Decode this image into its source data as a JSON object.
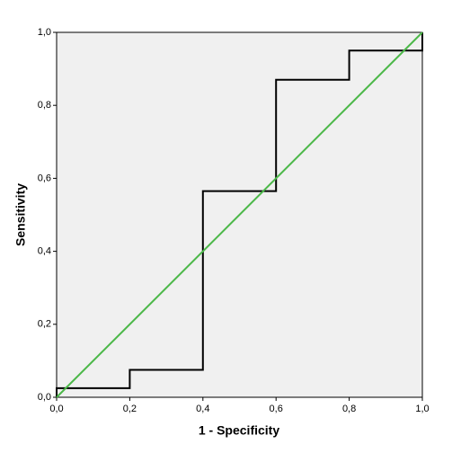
{
  "chart_data": {
    "type": "line",
    "x_label": "1 - Specificity",
    "y_label": "Sensitivity",
    "xlim": [
      0,
      1
    ],
    "ylim": [
      0,
      1
    ],
    "xticks": [
      {
        "value": 0,
        "label": "0,0"
      },
      {
        "value": 0.2,
        "label": "0,2"
      },
      {
        "value": 0.4,
        "label": "0,4"
      },
      {
        "value": 0.6,
        "label": "0,6"
      },
      {
        "value": 0.8,
        "label": "0,8"
      },
      {
        "value": 1,
        "label": "1,0"
      }
    ],
    "yticks": [
      {
        "value": 0,
        "label": "0,0"
      },
      {
        "value": 0.2,
        "label": "0,2"
      },
      {
        "value": 0.4,
        "label": "0,4"
      },
      {
        "value": 0.6,
        "label": "0,6"
      },
      {
        "value": 0.8,
        "label": "0,8"
      },
      {
        "value": 1,
        "label": "1,0"
      }
    ],
    "grid": false,
    "series": [
      {
        "color": "#000000",
        "x": [
          0,
          0,
          0.2,
          0.2,
          0.4,
          0.4,
          0.6,
          0.6,
          0.8,
          0.8,
          1,
          1
        ],
        "values": [
          0,
          0.025,
          0.025,
          0.075,
          0.075,
          0.565,
          0.565,
          0.87,
          0.87,
          0.95,
          0.95,
          1
        ]
      },
      {
        "color": "#4cb849",
        "x": [
          0,
          1
        ],
        "values": [
          0,
          1
        ]
      }
    ]
  }
}
